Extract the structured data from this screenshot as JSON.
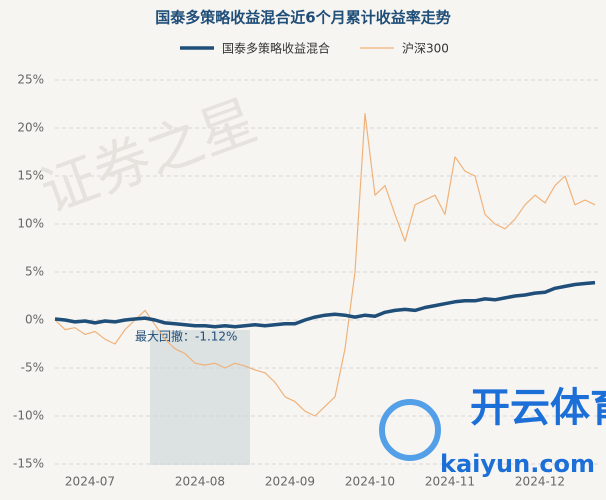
{
  "chart_data": {
    "type": "line",
    "title": "国泰多策略收益混合近6个月累计收益率走势",
    "annotation": "最大回撤：-1.12%",
    "watermarks": [
      "证券之星",
      "开云体育",
      "kaiyun.com"
    ],
    "categories": [
      null,
      null,
      null,
      "2024-07",
      null,
      null,
      null,
      null,
      null,
      null,
      null,
      null,
      null,
      null,
      "2024-08",
      null,
      null,
      null,
      null,
      null,
      null,
      null,
      null,
      "2024-09",
      null,
      null,
      null,
      null,
      null,
      null,
      null,
      "2024-10",
      null,
      null,
      null,
      null,
      null,
      null,
      null,
      "2024-11",
      null,
      null,
      null,
      null,
      null,
      null,
      null,
      null,
      "2024-12",
      null,
      null,
      null,
      null,
      null,
      null
    ],
    "series": [
      {
        "name": "国泰多策略收益混合",
        "color": "#1f4e79",
        "width": 3.5,
        "values": [
          0.1,
          0,
          -0.2,
          -0.1,
          -0.3,
          -0.1,
          -0.2,
          0,
          0.1,
          0.2,
          0,
          -0.3,
          -0.4,
          -0.5,
          -0.6,
          -0.6,
          -0.7,
          -0.6,
          -0.7,
          -0.6,
          -0.5,
          -0.6,
          -0.5,
          -0.4,
          -0.4,
          0,
          0.3,
          0.5,
          0.6,
          0.5,
          0.3,
          0.5,
          0.4,
          0.8,
          1,
          1.1,
          1,
          1.3,
          1.5,
          1.7,
          1.9,
          2,
          2,
          2.2,
          2.1,
          2.3,
          2.5,
          2.6,
          2.8,
          2.9,
          3.3,
          3.5,
          3.7,
          3.8,
          3.9
        ]
      },
      {
        "name": "沪深300",
        "color": "#f0b27a",
        "width": 1.2,
        "values": [
          0,
          -1,
          -0.8,
          -1.5,
          -1.2,
          -2,
          -2.5,
          -1,
          0,
          1,
          -0.5,
          -2,
          -3,
          -3.5,
          -4.5,
          -4.7,
          -4.5,
          -5,
          -4.5,
          -4.8,
          -5.2,
          -5.5,
          -6.5,
          -8,
          -8.5,
          -9.5,
          -10,
          -9,
          -8,
          -3,
          5,
          21.5,
          13,
          14,
          11,
          8.2,
          12,
          12.5,
          13,
          11,
          17,
          15.5,
          15,
          11,
          10,
          9.5,
          10.5,
          12,
          13,
          12.2,
          14,
          15,
          12,
          12.5,
          12
        ]
      }
    ],
    "ylim": [
      -15,
      25
    ],
    "yticks": [
      {
        "value": -15,
        "label": "-15%"
      },
      {
        "value": -10,
        "label": "-10%"
      },
      {
        "value": -5,
        "label": "-5%"
      },
      {
        "value": 0,
        "label": "0%"
      },
      {
        "value": 5,
        "label": "5%"
      },
      {
        "value": 10,
        "label": "10%"
      },
      {
        "value": 15,
        "label": "15%"
      },
      {
        "value": 20,
        "label": "20%"
      },
      {
        "value": 25,
        "label": "25%"
      }
    ],
    "grid": true
  }
}
